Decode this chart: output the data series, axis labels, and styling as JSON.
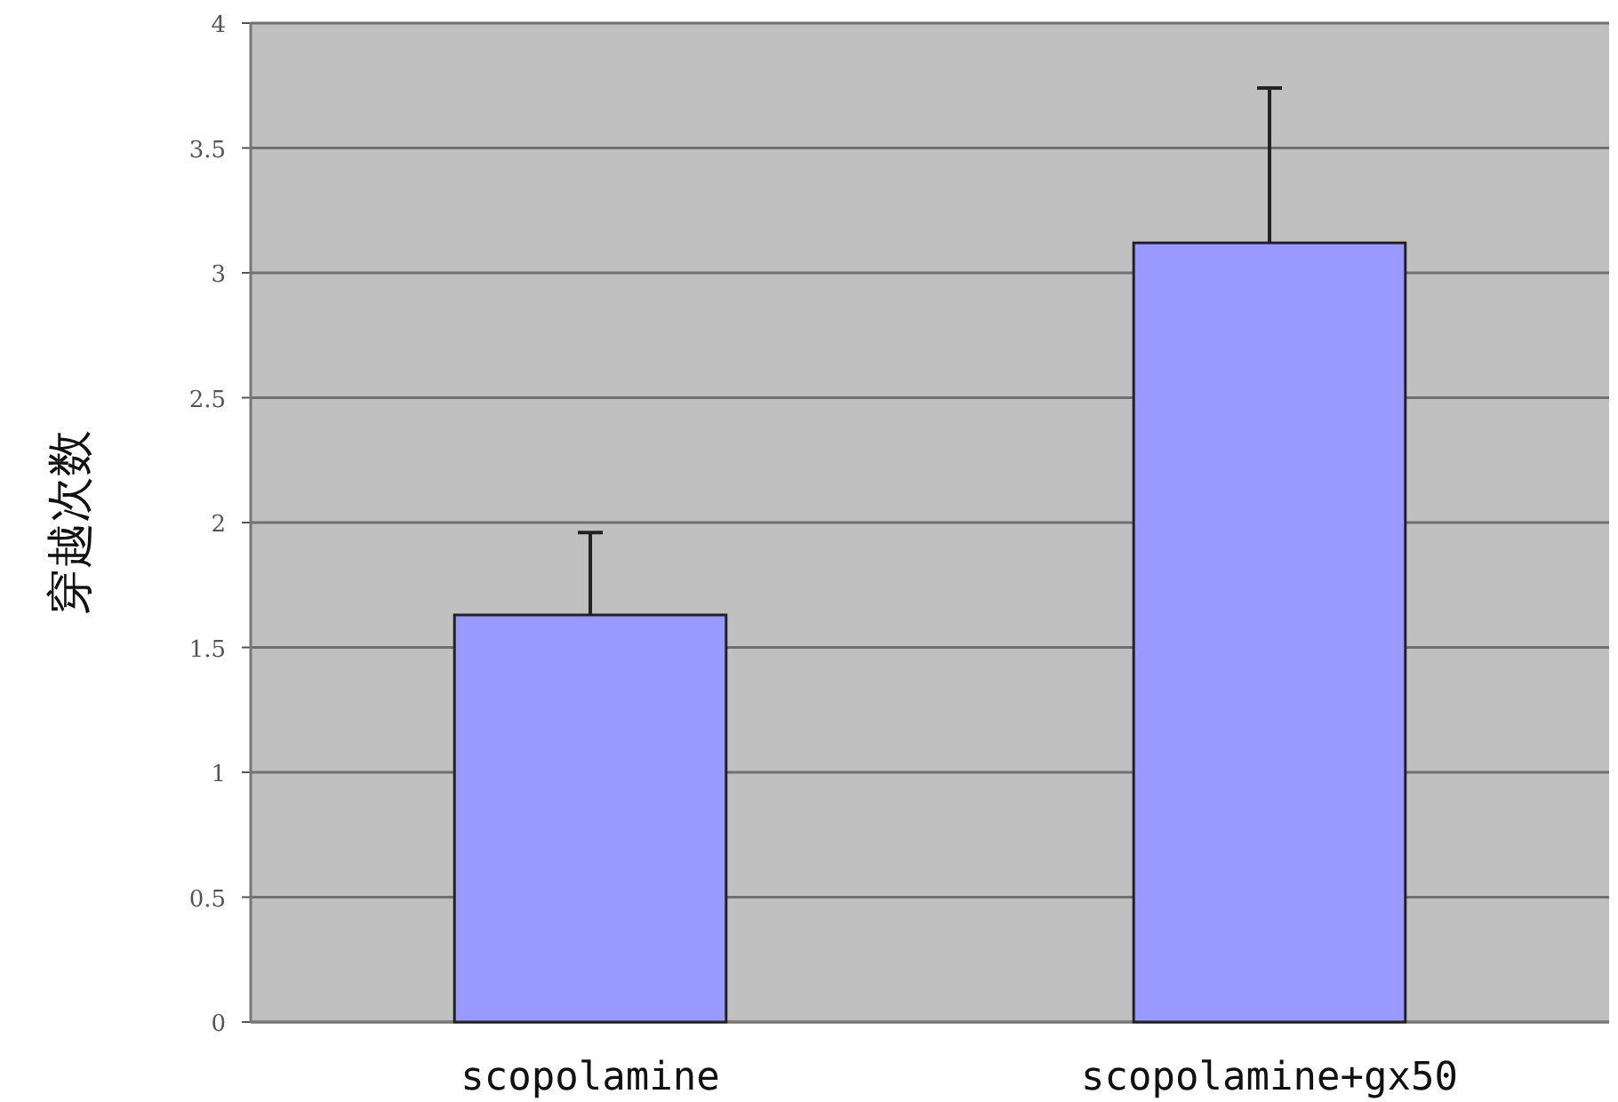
{
  "chart_data": {
    "type": "bar",
    "ylabel": "穿越次数",
    "categories": [
      "scopolamine",
      "scopolamine+gx50"
    ],
    "values": [
      1.63,
      3.12
    ],
    "errors": [
      0.33,
      0.62
    ],
    "color": "#9999ff",
    "ylim": [
      0,
      4
    ],
    "yticks": [
      0,
      0.5,
      1,
      1.5,
      2,
      2.5,
      3,
      3.5,
      4
    ],
    "grid": "y"
  }
}
